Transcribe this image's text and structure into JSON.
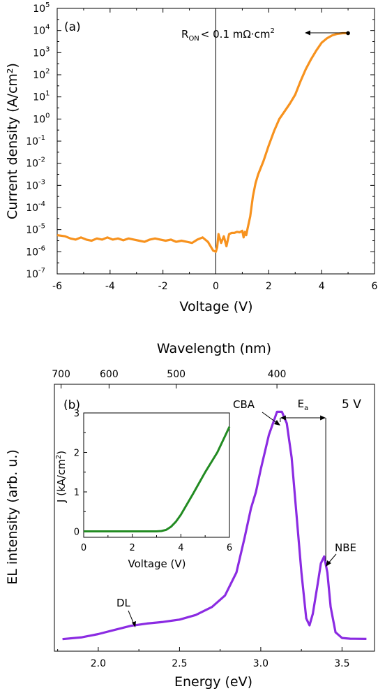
{
  "chart_data": [
    {
      "type": "line",
      "panel_label": "(a)",
      "xlabel": "Voltage (V)",
      "ylabel": "Current density (A/cm²)",
      "xlim": [
        -6,
        6
      ],
      "ylim_log10": [
        -7,
        5
      ],
      "yscale": "log",
      "x_ticks": [
        "-6",
        "-4",
        "-2",
        "0",
        "2",
        "4",
        "6"
      ],
      "y_ticks": [
        {
          "base": "10",
          "exp": "5"
        },
        {
          "base": "10",
          "exp": "4"
        },
        {
          "base": "10",
          "exp": "3"
        },
        {
          "base": "10",
          "exp": "2"
        },
        {
          "base": "10",
          "exp": "1"
        },
        {
          "base": "10",
          "exp": "0"
        },
        {
          "base": "10",
          "exp": "-1"
        },
        {
          "base": "10",
          "exp": "-2"
        },
        {
          "base": "10",
          "exp": "-3"
        },
        {
          "base": "10",
          "exp": "-4"
        },
        {
          "base": "10",
          "exp": "-5"
        },
        {
          "base": "10",
          "exp": "-6"
        },
        {
          "base": "10",
          "exp": "-7"
        }
      ],
      "annotation": {
        "R": "R",
        "sub": "ON",
        "rest": "< 0.1 mΩ·cm",
        "sup": "2",
        "x": 5.0,
        "y_log10": 3.88
      },
      "series_color": "#F7921E",
      "series": [
        {
          "x": [
            -6.0,
            -5.7,
            -5.5,
            -5.3,
            -5.1,
            -4.9,
            -4.7,
            -4.5,
            -4.3,
            -4.1,
            -3.9,
            -3.7,
            -3.5,
            -3.3,
            -3.1,
            -2.9,
            -2.7,
            -2.5,
            -2.3,
            -2.1,
            -1.9,
            -1.7,
            -1.5,
            -1.3,
            -1.1,
            -0.9,
            -0.7,
            -0.5,
            -0.3,
            -0.1,
            0.0,
            0.05,
            0.1,
            0.2,
            0.3,
            0.4,
            0.5,
            0.6,
            0.7,
            0.8,
            0.9,
            1.0,
            1.05,
            1.1,
            1.15,
            1.2,
            1.3,
            1.4,
            1.5,
            1.6,
            1.8,
            2.0,
            2.2,
            2.4,
            2.6,
            2.8,
            3.0,
            3.2,
            3.4,
            3.6,
            3.8,
            4.0,
            4.2,
            4.4,
            4.6,
            4.8,
            5.0
          ],
          "y_log10": [
            -5.25,
            -5.3,
            -5.4,
            -5.45,
            -5.35,
            -5.45,
            -5.5,
            -5.4,
            -5.45,
            -5.35,
            -5.45,
            -5.4,
            -5.48,
            -5.4,
            -5.45,
            -5.5,
            -5.55,
            -5.45,
            -5.4,
            -5.45,
            -5.5,
            -5.45,
            -5.55,
            -5.5,
            -5.55,
            -5.6,
            -5.45,
            -5.35,
            -5.55,
            -5.95,
            -6.0,
            -5.8,
            -5.2,
            -5.6,
            -5.3,
            -5.75,
            -5.2,
            -5.15,
            -5.15,
            -5.1,
            -5.12,
            -5.05,
            -5.35,
            -5.1,
            -5.25,
            -4.95,
            -4.4,
            -3.5,
            -2.9,
            -2.5,
            -1.9,
            -1.2,
            -0.55,
            0.0,
            0.35,
            0.7,
            1.1,
            1.7,
            2.25,
            2.7,
            3.1,
            3.45,
            3.65,
            3.78,
            3.85,
            3.88,
            3.88
          ]
        }
      ]
    },
    {
      "type": "line",
      "panel_label": "(b)",
      "xlabel": "Energy (eV)",
      "ylabel": "EL intensity (arb. u.)",
      "top_xlabel": "Wavelength (nm)",
      "xlim": [
        1.73,
        3.7
      ],
      "ylim": [
        0,
        1.12
      ],
      "x_ticks": [
        "2.0",
        "2.5",
        "3.0",
        "3.5"
      ],
      "top_ticks": [
        {
          "label": "700",
          "wavelength_nm": 700
        },
        {
          "label": "600",
          "wavelength_nm": 600
        },
        {
          "label": "500",
          "wavelength_nm": 500
        },
        {
          "label": "400",
          "wavelength_nm": 400
        }
      ],
      "voltage_label": "5 V",
      "annotations": {
        "cba": "CBA",
        "nbe": "NBE",
        "dl": "DL",
        "ea_base": "E",
        "ea_sub": "a"
      },
      "ea_range_ev": [
        3.12,
        3.4
      ],
      "series_color": "#8B2BE2",
      "series": [
        {
          "x": [
            1.78,
            1.9,
            2.0,
            2.1,
            2.2,
            2.3,
            2.4,
            2.5,
            2.6,
            2.7,
            2.78,
            2.85,
            2.9,
            2.94,
            2.97,
            3.0,
            3.05,
            3.1,
            3.13,
            3.16,
            3.19,
            3.22,
            3.25,
            3.28,
            3.3,
            3.32,
            3.35,
            3.37,
            3.39,
            3.41,
            3.43,
            3.46,
            3.5,
            3.55,
            3.65
          ],
          "y": [
            0.01,
            0.018,
            0.032,
            0.05,
            0.068,
            0.078,
            0.085,
            0.095,
            0.115,
            0.15,
            0.2,
            0.3,
            0.45,
            0.58,
            0.65,
            0.75,
            0.9,
            1.0,
            1.0,
            0.95,
            0.8,
            0.55,
            0.3,
            0.1,
            0.07,
            0.12,
            0.25,
            0.34,
            0.37,
            0.3,
            0.15,
            0.04,
            0.015,
            0.012,
            0.011
          ]
        }
      ],
      "inset": {
        "type": "line",
        "xlabel": "Voltage (V)",
        "ylabel_base": "J (kA/cm",
        "ylabel_sup": "2",
        "ylabel_end": ")",
        "xlim": [
          0,
          6
        ],
        "ylim": [
          -0.15,
          3
        ],
        "x_ticks": [
          "0",
          "2",
          "4",
          "6"
        ],
        "y_ticks": [
          "0",
          "1",
          "2",
          "3"
        ],
        "series_color": "#228B22",
        "series": [
          {
            "x": [
              0,
              1,
              2,
              3,
              3.2,
              3.4,
              3.6,
              3.8,
              4.0,
              4.5,
              5.0,
              5.5,
              6.0
            ],
            "y": [
              0,
              0,
              0,
              0,
              0.01,
              0.04,
              0.12,
              0.25,
              0.42,
              0.95,
              1.5,
              2.0,
              2.65
            ]
          }
        ]
      }
    }
  ]
}
